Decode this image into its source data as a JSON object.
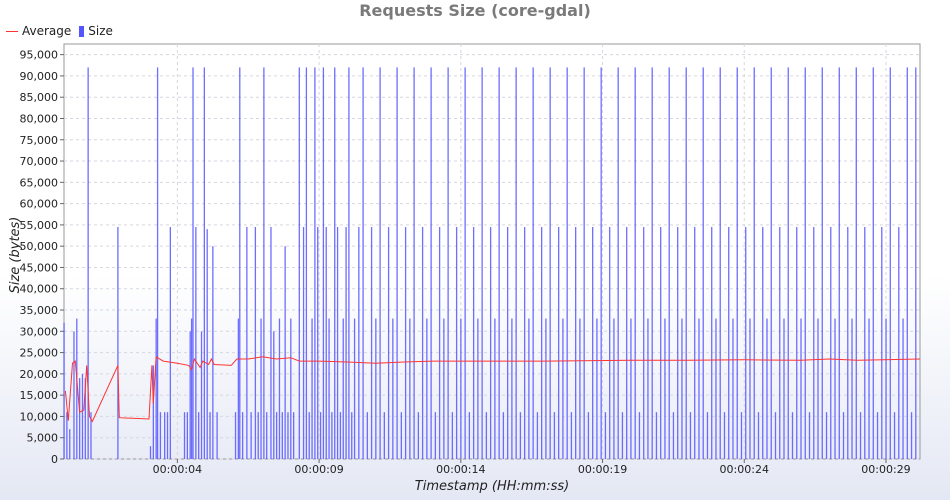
{
  "chart_data": {
    "type": "bar",
    "title": "Requests Size (core-gdal)",
    "xlabel": "Timestamp (HH:mm:ss)",
    "ylabel": "Size (bytes)",
    "ylim": [
      0,
      97500
    ],
    "xlim": [
      0,
      30.2
    ],
    "y_ticks": [
      0,
      5000,
      10000,
      15000,
      20000,
      25000,
      30000,
      35000,
      40000,
      45000,
      50000,
      55000,
      60000,
      65000,
      70000,
      75000,
      80000,
      85000,
      90000,
      95000
    ],
    "y_tick_labels": [
      "0",
      "5,000",
      "10,000",
      "15,000",
      "20,000",
      "25,000",
      "30,000",
      "35,000",
      "40,000",
      "45,000",
      "50,000",
      "55,000",
      "60,000",
      "65,000",
      "70,000",
      "75,000",
      "80,000",
      "85,000",
      "90,000",
      "95,000"
    ],
    "x_ticks": [
      4,
      9,
      14,
      19,
      24,
      29
    ],
    "x_tick_labels": [
      "00:00:04",
      "00:00:09",
      "00:00:14",
      "00:00:19",
      "00:00:24",
      "00:00:29"
    ],
    "grid": true,
    "legend_position": "top-left",
    "series": [
      {
        "name": "Average",
        "kind": "line",
        "color": "#ff3333",
        "points": [
          [
            0.05,
            16000
          ],
          [
            0.15,
            9000
          ],
          [
            0.3,
            22500
          ],
          [
            0.4,
            23000
          ],
          [
            0.55,
            11000
          ],
          [
            0.7,
            11500
          ],
          [
            0.8,
            22000
          ],
          [
            0.9,
            10000
          ],
          [
            1.0,
            8800
          ],
          [
            1.9,
            22000
          ],
          [
            1.95,
            9700
          ],
          [
            3.0,
            9400
          ],
          [
            3.1,
            22000
          ],
          [
            3.15,
            13000
          ],
          [
            3.25,
            24000
          ],
          [
            3.5,
            23000
          ],
          [
            4.0,
            22500
          ],
          [
            4.4,
            22000
          ],
          [
            4.5,
            21000
          ],
          [
            4.6,
            23500
          ],
          [
            4.8,
            21500
          ],
          [
            4.9,
            23000
          ],
          [
            5.1,
            22200
          ],
          [
            5.2,
            23500
          ],
          [
            5.3,
            22200
          ],
          [
            5.9,
            22000
          ],
          [
            6.1,
            23500
          ],
          [
            6.5,
            23500
          ],
          [
            7.0,
            24000
          ],
          [
            7.5,
            23500
          ],
          [
            8.0,
            23800
          ],
          [
            8.3,
            23000
          ],
          [
            9.0,
            23000
          ],
          [
            10.0,
            22800
          ],
          [
            11.0,
            22500
          ],
          [
            12.0,
            22800
          ],
          [
            13.0,
            23000
          ],
          [
            15.0,
            23000
          ],
          [
            17.0,
            23000
          ],
          [
            20.0,
            23200
          ],
          [
            22.0,
            23200
          ],
          [
            24.0,
            23300
          ],
          [
            26.0,
            23200
          ],
          [
            27.0,
            23500
          ],
          [
            28.0,
            23200
          ],
          [
            30.2,
            23500
          ]
        ]
      },
      {
        "name": "Size",
        "kind": "bar",
        "color": "#5555ff",
        "values": [
          [
            0.0,
            32000
          ],
          [
            0.1,
            11000
          ],
          [
            0.2,
            7000
          ],
          [
            0.35,
            30000
          ],
          [
            0.45,
            33000
          ],
          [
            0.55,
            19000
          ],
          [
            0.65,
            20000
          ],
          [
            0.75,
            19000
          ],
          [
            0.85,
            92000
          ],
          [
            0.95,
            11000
          ],
          [
            1.9,
            54500
          ],
          [
            3.05,
            3000
          ],
          [
            3.15,
            22000
          ],
          [
            3.25,
            33000
          ],
          [
            3.3,
            92000
          ],
          [
            3.4,
            11000
          ],
          [
            3.55,
            11000
          ],
          [
            3.65,
            11000
          ],
          [
            3.75,
            54500
          ],
          [
            4.25,
            11000
          ],
          [
            4.35,
            11000
          ],
          [
            4.45,
            30000
          ],
          [
            4.5,
            33000
          ],
          [
            4.55,
            92000
          ],
          [
            4.65,
            54500
          ],
          [
            4.75,
            11000
          ],
          [
            4.85,
            30000
          ],
          [
            4.95,
            92000
          ],
          [
            5.05,
            54000
          ],
          [
            5.15,
            11000
          ],
          [
            5.25,
            50000
          ],
          [
            5.4,
            11000
          ],
          [
            6.05,
            11000
          ],
          [
            6.15,
            33000
          ],
          [
            6.2,
            92000
          ],
          [
            6.3,
            11000
          ],
          [
            6.45,
            54500
          ],
          [
            6.6,
            11000
          ],
          [
            6.75,
            54500
          ],
          [
            6.85,
            11000
          ],
          [
            6.95,
            33000
          ],
          [
            7.05,
            92000
          ],
          [
            7.15,
            11000
          ],
          [
            7.3,
            54500
          ],
          [
            7.4,
            30000
          ],
          [
            7.5,
            11000
          ],
          [
            7.6,
            33000
          ],
          [
            7.7,
            11000
          ],
          [
            7.8,
            50000
          ],
          [
            7.9,
            11000
          ],
          [
            8.0,
            33000
          ],
          [
            8.1,
            11000
          ],
          [
            8.3,
            92000
          ],
          [
            8.45,
            54500
          ],
          [
            8.55,
            92000
          ],
          [
            8.65,
            11000
          ],
          [
            8.75,
            33000
          ],
          [
            8.85,
            92000
          ],
          [
            8.95,
            54500
          ],
          [
            9.05,
            11000
          ],
          [
            9.15,
            92000
          ],
          [
            9.25,
            54500
          ],
          [
            9.35,
            33000
          ],
          [
            9.45,
            11000
          ],
          [
            9.55,
            92000
          ],
          [
            9.65,
            54500
          ],
          [
            9.75,
            11000
          ],
          [
            9.85,
            33000
          ],
          [
            9.95,
            54500
          ],
          [
            10.05,
            92000
          ],
          [
            10.15,
            11000
          ],
          [
            10.25,
            33000
          ],
          [
            10.4,
            54500
          ],
          [
            10.55,
            92000
          ],
          [
            10.7,
            11000
          ],
          [
            10.85,
            54500
          ],
          [
            11.0,
            33000
          ],
          [
            11.15,
            92000
          ],
          [
            11.3,
            11000
          ],
          [
            11.45,
            54500
          ],
          [
            11.6,
            33000
          ],
          [
            11.75,
            92000
          ],
          [
            11.9,
            11000
          ],
          [
            12.05,
            54500
          ],
          [
            12.2,
            33000
          ],
          [
            12.35,
            92000
          ],
          [
            12.5,
            11000
          ],
          [
            12.65,
            54500
          ],
          [
            12.8,
            33000
          ],
          [
            12.95,
            92000
          ],
          [
            13.1,
            11000
          ],
          [
            13.25,
            54500
          ],
          [
            13.4,
            33000
          ],
          [
            13.55,
            92000
          ],
          [
            13.7,
            11000
          ],
          [
            13.85,
            54500
          ],
          [
            14.0,
            33000
          ],
          [
            14.15,
            92000
          ],
          [
            14.3,
            11000
          ],
          [
            14.45,
            54500
          ],
          [
            14.6,
            33000
          ],
          [
            14.75,
            92000
          ],
          [
            14.9,
            11000
          ],
          [
            15.05,
            54500
          ],
          [
            15.2,
            33000
          ],
          [
            15.35,
            92000
          ],
          [
            15.5,
            11000
          ],
          [
            15.65,
            54500
          ],
          [
            15.8,
            33000
          ],
          [
            15.95,
            92000
          ],
          [
            16.1,
            11000
          ],
          [
            16.25,
            54500
          ],
          [
            16.4,
            33000
          ],
          [
            16.55,
            92000
          ],
          [
            16.7,
            11000
          ],
          [
            16.85,
            54500
          ],
          [
            17.0,
            33000
          ],
          [
            17.15,
            92000
          ],
          [
            17.3,
            11000
          ],
          [
            17.45,
            54500
          ],
          [
            17.6,
            33000
          ],
          [
            17.75,
            92000
          ],
          [
            17.9,
            11000
          ],
          [
            18.05,
            54500
          ],
          [
            18.2,
            33000
          ],
          [
            18.35,
            92000
          ],
          [
            18.5,
            11000
          ],
          [
            18.65,
            54500
          ],
          [
            18.8,
            33000
          ],
          [
            18.95,
            92000
          ],
          [
            19.1,
            11000
          ],
          [
            19.25,
            54500
          ],
          [
            19.4,
            33000
          ],
          [
            19.55,
            92000
          ],
          [
            19.7,
            11000
          ],
          [
            19.85,
            54500
          ],
          [
            20.0,
            33000
          ],
          [
            20.15,
            92000
          ],
          [
            20.3,
            11000
          ],
          [
            20.45,
            54500
          ],
          [
            20.6,
            33000
          ],
          [
            20.75,
            92000
          ],
          [
            20.9,
            11000
          ],
          [
            21.05,
            54500
          ],
          [
            21.2,
            33000
          ],
          [
            21.35,
            92000
          ],
          [
            21.5,
            11000
          ],
          [
            21.65,
            54500
          ],
          [
            21.8,
            33000
          ],
          [
            21.95,
            92000
          ],
          [
            22.1,
            11000
          ],
          [
            22.25,
            54500
          ],
          [
            22.4,
            33000
          ],
          [
            22.55,
            92000
          ],
          [
            22.7,
            11000
          ],
          [
            22.85,
            54500
          ],
          [
            23.0,
            33000
          ],
          [
            23.15,
            92000
          ],
          [
            23.3,
            11000
          ],
          [
            23.45,
            54500
          ],
          [
            23.6,
            33000
          ],
          [
            23.75,
            92000
          ],
          [
            23.9,
            11000
          ],
          [
            24.05,
            54500
          ],
          [
            24.2,
            33000
          ],
          [
            24.35,
            92000
          ],
          [
            24.5,
            11000
          ],
          [
            24.65,
            54500
          ],
          [
            24.8,
            33000
          ],
          [
            24.95,
            92000
          ],
          [
            25.1,
            11000
          ],
          [
            25.25,
            54500
          ],
          [
            25.4,
            33000
          ],
          [
            25.55,
            92000
          ],
          [
            25.7,
            11000
          ],
          [
            25.85,
            54500
          ],
          [
            26.0,
            33000
          ],
          [
            26.15,
            92000
          ],
          [
            26.3,
            11000
          ],
          [
            26.45,
            54500
          ],
          [
            26.6,
            33000
          ],
          [
            26.75,
            92000
          ],
          [
            26.9,
            11000
          ],
          [
            27.05,
            54500
          ],
          [
            27.2,
            33000
          ],
          [
            27.35,
            92000
          ],
          [
            27.5,
            11000
          ],
          [
            27.65,
            54500
          ],
          [
            27.8,
            33000
          ],
          [
            27.95,
            92000
          ],
          [
            28.1,
            11000
          ],
          [
            28.25,
            54500
          ],
          [
            28.4,
            33000
          ],
          [
            28.55,
            92000
          ],
          [
            28.7,
            11000
          ],
          [
            28.85,
            54500
          ],
          [
            29.0,
            33000
          ],
          [
            29.15,
            92000
          ],
          [
            29.3,
            11000
          ],
          [
            29.45,
            54500
          ],
          [
            29.6,
            33000
          ],
          [
            29.75,
            92000
          ],
          [
            29.9,
            11000
          ],
          [
            30.05,
            92000
          ]
        ]
      }
    ]
  }
}
